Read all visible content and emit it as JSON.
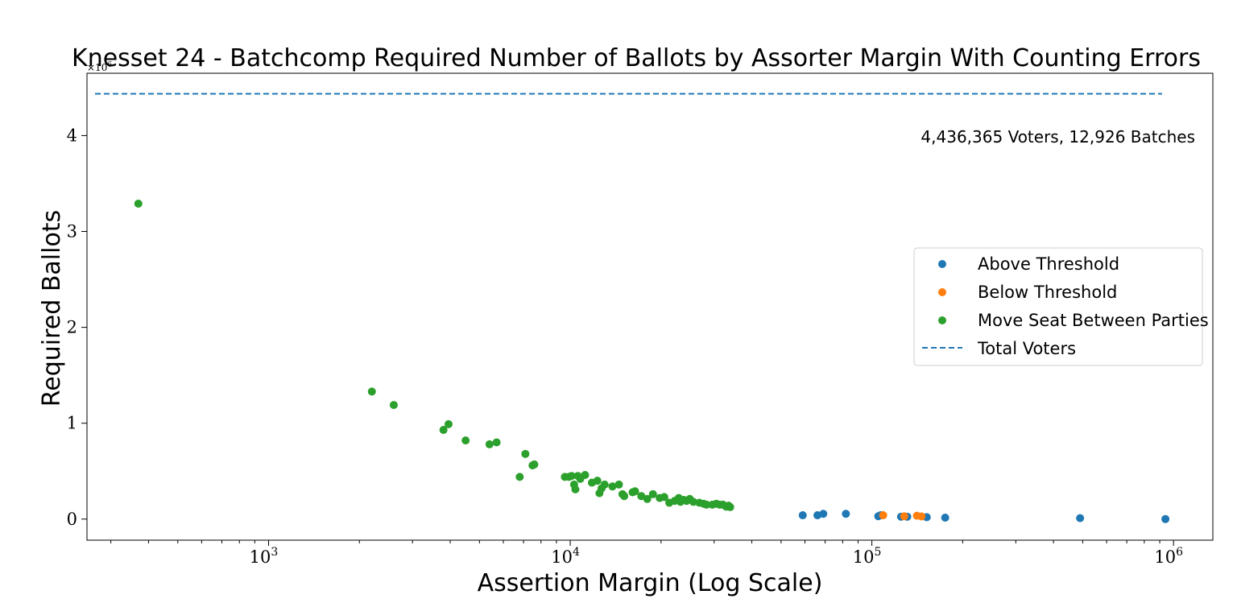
{
  "chart_data": {
    "type": "scatter",
    "title": "Knesset 24 - Batchcomp Required Number of Ballots by Assorter Margin With Counting Errors",
    "xlabel": "Assertion Margin (Log Scale)",
    "ylabel": "Required Ballots",
    "x_scale": "log",
    "xlim": [
      250,
      1350000
    ],
    "ylim": [
      -220000,
      4650000
    ],
    "x_ticks": [
      {
        "value": 1000,
        "base": "10",
        "exp": "3"
      },
      {
        "value": 10000,
        "base": "10",
        "exp": "4"
      },
      {
        "value": 100000,
        "base": "10",
        "exp": "5"
      },
      {
        "value": 1000000,
        "base": "10",
        "exp": "6"
      }
    ],
    "y_ticks": [
      {
        "value": 0,
        "label": "0"
      },
      {
        "value": 1000000,
        "label": "1"
      },
      {
        "value": 2000000,
        "label": "2"
      },
      {
        "value": 3000000,
        "label": "3"
      },
      {
        "value": 4000000,
        "label": "4"
      }
    ],
    "y_multiplier_base": "×10",
    "y_multiplier_exp": "6",
    "annotation": "4,436,365 Voters, 12,926 Batches",
    "reference_line": {
      "name": "Total Voters",
      "value": 4436365,
      "color": "#1f77b4",
      "style": "dashed"
    },
    "legend_position": "center-right",
    "series": [
      {
        "name": "Above Threshold",
        "color": "#1f77b4",
        "points": [
          [
            59000,
            40000
          ],
          [
            66000,
            40000
          ],
          [
            69000,
            55000
          ],
          [
            82000,
            55000
          ],
          [
            105000,
            30000
          ],
          [
            107000,
            40000
          ],
          [
            125000,
            25000
          ],
          [
            131000,
            25000
          ],
          [
            152000,
            20000
          ],
          [
            175000,
            15000
          ],
          [
            490000,
            10000
          ],
          [
            940000,
            0
          ]
        ]
      },
      {
        "name": "Below Threshold",
        "color": "#ff7f0e",
        "points": [
          [
            109000,
            40000
          ],
          [
            128000,
            30000
          ],
          [
            141000,
            35000
          ],
          [
            146000,
            28000
          ]
        ]
      },
      {
        "name": "Move Seat Between Parties",
        "color": "#2ca02c",
        "points": [
          [
            370,
            3290000
          ],
          [
            2200,
            1330000
          ],
          [
            2600,
            1190000
          ],
          [
            3800,
            930000
          ],
          [
            3950,
            990000
          ],
          [
            4500,
            820000
          ],
          [
            5400,
            780000
          ],
          [
            5700,
            800000
          ],
          [
            6800,
            440000
          ],
          [
            7100,
            680000
          ],
          [
            7500,
            560000
          ],
          [
            7600,
            570000
          ],
          [
            9600,
            440000
          ],
          [
            9900,
            440000
          ],
          [
            10100,
            450000
          ],
          [
            10300,
            360000
          ],
          [
            10400,
            310000
          ],
          [
            10600,
            450000
          ],
          [
            10800,
            420000
          ],
          [
            11200,
            460000
          ],
          [
            11800,
            380000
          ],
          [
            12300,
            400000
          ],
          [
            12500,
            270000
          ],
          [
            12700,
            320000
          ],
          [
            13000,
            360000
          ],
          [
            13800,
            340000
          ],
          [
            14500,
            360000
          ],
          [
            14900,
            260000
          ],
          [
            15100,
            240000
          ],
          [
            16100,
            280000
          ],
          [
            16400,
            290000
          ],
          [
            17200,
            240000
          ],
          [
            18000,
            210000
          ],
          [
            18800,
            260000
          ],
          [
            19800,
            220000
          ],
          [
            20500,
            230000
          ],
          [
            21300,
            170000
          ],
          [
            22200,
            190000
          ],
          [
            22900,
            220000
          ],
          [
            23200,
            180000
          ],
          [
            23800,
            200000
          ],
          [
            24300,
            190000
          ],
          [
            24900,
            210000
          ],
          [
            25600,
            180000
          ],
          [
            26800,
            170000
          ],
          [
            27700,
            160000
          ],
          [
            28300,
            150000
          ],
          [
            29600,
            150000
          ],
          [
            30500,
            160000
          ],
          [
            31300,
            150000
          ],
          [
            32100,
            150000
          ],
          [
            32900,
            130000
          ],
          [
            33500,
            140000
          ],
          [
            33900,
            125000
          ]
        ]
      }
    ]
  }
}
